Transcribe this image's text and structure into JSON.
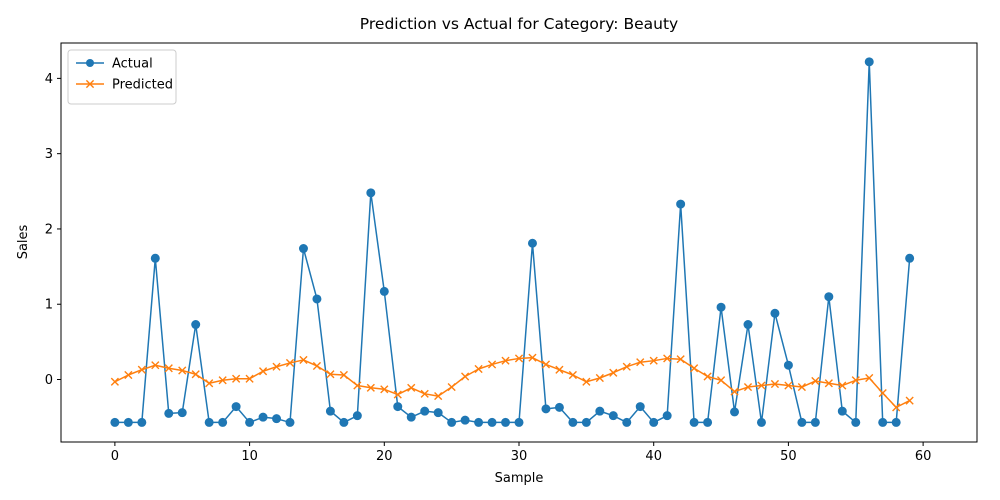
{
  "chart_data": {
    "type": "line",
    "title": "Prediction vs Actual for Category: Beauty",
    "xlabel": "Sample",
    "ylabel": "Sales",
    "xlim": [
      -4,
      64
    ],
    "ylim": [
      -0.83,
      4.47
    ],
    "xticks": [
      0,
      10,
      20,
      30,
      40,
      50,
      60
    ],
    "yticks": [
      0,
      1,
      2,
      3,
      4
    ],
    "grid": false,
    "legend_position": "upper-left",
    "x": [
      0,
      1,
      2,
      3,
      4,
      5,
      6,
      7,
      8,
      9,
      10,
      11,
      12,
      13,
      14,
      15,
      16,
      17,
      18,
      19,
      20,
      21,
      22,
      23,
      24,
      25,
      26,
      27,
      28,
      29,
      30,
      31,
      32,
      33,
      34,
      35,
      36,
      37,
      38,
      39,
      40,
      41,
      42,
      43,
      44,
      45,
      46,
      47,
      48,
      49,
      50,
      51,
      52,
      53,
      54,
      55,
      56,
      57,
      58,
      59
    ],
    "series": [
      {
        "name": "Actual",
        "color": "#1f77b4",
        "marker": "circle",
        "values": [
          -0.57,
          -0.57,
          -0.57,
          1.61,
          -0.45,
          -0.44,
          0.73,
          -0.57,
          -0.57,
          -0.36,
          -0.57,
          -0.5,
          -0.52,
          -0.57,
          1.74,
          1.07,
          -0.42,
          -0.57,
          -0.48,
          2.48,
          1.17,
          -0.36,
          -0.5,
          -0.42,
          -0.44,
          -0.57,
          -0.54,
          -0.57,
          -0.57,
          -0.57,
          -0.57,
          1.81,
          -0.39,
          -0.37,
          -0.57,
          -0.57,
          -0.42,
          -0.48,
          -0.57,
          -0.36,
          -0.57,
          -0.48,
          2.33,
          -0.57,
          -0.57,
          0.96,
          -0.43,
          0.73,
          -0.57,
          0.88,
          0.19,
          -0.57,
          -0.57,
          1.1,
          -0.42,
          -0.57,
          4.22,
          -0.57,
          -0.57,
          1.61
        ]
      },
      {
        "name": "Predicted",
        "color": "#ff7f0e",
        "marker": "x",
        "values": [
          -0.03,
          0.06,
          0.13,
          0.19,
          0.15,
          0.12,
          0.07,
          -0.05,
          -0.01,
          0.01,
          0.01,
          0.11,
          0.17,
          0.22,
          0.26,
          0.18,
          0.07,
          0.06,
          -0.08,
          -0.11,
          -0.13,
          -0.2,
          -0.11,
          -0.19,
          -0.22,
          -0.1,
          0.04,
          0.14,
          0.2,
          0.25,
          0.28,
          0.29,
          0.2,
          0.13,
          0.06,
          -0.03,
          0.02,
          0.09,
          0.17,
          0.23,
          0.25,
          0.28,
          0.27,
          0.15,
          0.04,
          -0.01,
          -0.16,
          -0.1,
          -0.08,
          -0.06,
          -0.08,
          -0.1,
          -0.02,
          -0.05,
          -0.08,
          -0.01,
          0.02,
          -0.18,
          -0.37,
          -0.28
        ]
      }
    ]
  }
}
